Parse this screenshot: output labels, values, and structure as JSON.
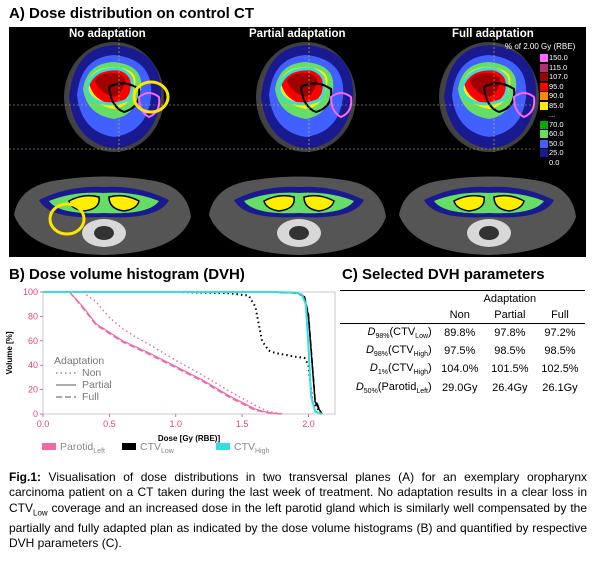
{
  "panel_a": {
    "title": "A) Dose distribution on control CT",
    "columns": [
      "No adaptation",
      "Partial adaptation",
      "Full adaptation"
    ],
    "scale_title": "% of 2.00 Gy (RBE)",
    "scale": [
      {
        "label": "150.0",
        "color": "#ff66ff"
      },
      {
        "label": "115.0",
        "color": "#b03070"
      },
      {
        "label": "107.0",
        "color": "#a00000"
      },
      {
        "label": "95.0",
        "color": "#ff0000"
      },
      {
        "label": "90.0",
        "color": "#ff8800"
      },
      {
        "label": "85.0",
        "color": "#ffee00"
      },
      {
        "label": "...",
        "color": "#000000"
      },
      {
        "label": "70.0",
        "color": "#00aa00"
      },
      {
        "label": "60.0",
        "color": "#66dd66"
      },
      {
        "label": "50.0",
        "color": "#4060ff"
      },
      {
        "label": "25.0",
        "color": "#1a1a90"
      },
      {
        "label": "0.0",
        "color": "#000000"
      }
    ]
  },
  "panel_b": {
    "title": "B) Dose volume histogram (DVH)",
    "legend_title": "Adaptation",
    "legend_items": [
      "Non",
      "Partial",
      "Full"
    ],
    "struct_legend": [
      {
        "base": "Parotid",
        "sub": "Left",
        "color": "#f06aa8"
      },
      {
        "base": "CTV",
        "sub": "Low",
        "color": "#000000"
      },
      {
        "base": "CTV",
        "sub": "High",
        "color": "#33dde0"
      }
    ]
  },
  "chart_data": {
    "type": "line",
    "xlabel": "Dose [Gy (RBE)]",
    "ylabel": "Volume [%]",
    "xlim": [
      0,
      2.2
    ],
    "ylim": [
      0,
      100
    ],
    "x_ticks": [
      "0.0",
      "0.5",
      "1.0",
      "1.5",
      "2.0"
    ],
    "y_ticks": [
      "0",
      "20",
      "40",
      "60",
      "80",
      "100"
    ],
    "grid": false,
    "series": [
      {
        "name": "Parotid (Non)",
        "color": "#f06aa8",
        "dash": "1.5,3",
        "width": 1.5,
        "x": [
          0.3,
          0.4,
          0.5,
          0.6,
          0.7,
          0.8,
          1.0,
          1.2,
          1.4,
          1.6,
          1.7,
          1.8
        ],
        "y": [
          100,
          92,
          79,
          70,
          63,
          57,
          44,
          32,
          19,
          7,
          2,
          0
        ]
      },
      {
        "name": "Parotid (Partial)",
        "color": "#f06aa8",
        "dash": "",
        "width": 1.2,
        "x": [
          0.2,
          0.3,
          0.4,
          0.5,
          0.6,
          0.8,
          1.0,
          1.2,
          1.4,
          1.6,
          1.7,
          1.8
        ],
        "y": [
          100,
          88,
          74,
          67,
          60,
          50,
          39,
          28,
          15,
          4,
          1,
          0
        ]
      },
      {
        "name": "Parotid (Full)",
        "color": "#f06aa8",
        "dash": "6,3",
        "width": 1.5,
        "x": [
          0.2,
          0.3,
          0.4,
          0.5,
          0.6,
          0.8,
          1.0,
          1.2,
          1.4,
          1.6,
          1.7,
          1.8
        ],
        "y": [
          100,
          87,
          73,
          66,
          59,
          49,
          38,
          27,
          14,
          3,
          1,
          0
        ]
      },
      {
        "name": "CTV Low (Non)",
        "color": "#000000",
        "dash": "1.5,3",
        "width": 2,
        "x": [
          0,
          1.0,
          1.4,
          1.55,
          1.6,
          1.65,
          1.7,
          1.75,
          1.9,
          1.97,
          2.0,
          2.03,
          2.1
        ],
        "y": [
          100,
          100,
          99,
          97,
          88,
          60,
          52,
          50,
          47,
          46,
          40,
          10,
          0
        ]
      },
      {
        "name": "CTV Low (Partial)",
        "color": "#000000",
        "dash": "",
        "width": 1.5,
        "x": [
          0,
          1.7,
          1.85,
          1.92,
          1.97,
          2.0,
          2.05,
          2.1
        ],
        "y": [
          100,
          100,
          99.5,
          99,
          96,
          80,
          10,
          0
        ]
      },
      {
        "name": "CTV Low (Full)",
        "color": "#000000",
        "dash": "6,3",
        "width": 1.5,
        "x": [
          0,
          1.7,
          1.85,
          1.92,
          1.97,
          2.0,
          2.05,
          2.1
        ],
        "y": [
          100,
          100,
          99.5,
          99,
          96,
          82,
          12,
          0
        ]
      },
      {
        "name": "CTV High",
        "color": "#33dde0",
        "dash": "",
        "width": 2,
        "x": [
          0,
          1.75,
          1.9,
          1.95,
          1.98,
          2.0,
          2.02,
          2.05,
          2.1
        ],
        "y": [
          100,
          100,
          99.5,
          98,
          90,
          55,
          15,
          2,
          0
        ]
      }
    ]
  },
  "panel_c": {
    "title": "C) Selected DVH parameters",
    "group_header": "Adaptation",
    "col_headers": [
      "Non",
      "Partial",
      "Full"
    ],
    "rows": [
      {
        "param": "D",
        "psub": "98%",
        "struct": "CTV",
        "ssub": "Low",
        "values": [
          "89.8%",
          "97.8%",
          "97.2%"
        ]
      },
      {
        "param": "D",
        "psub": "98%",
        "struct": "CTV",
        "ssub": "High",
        "values": [
          "97.5%",
          "98.5%",
          "98.5%"
        ]
      },
      {
        "param": "D",
        "psub": "1%",
        "struct": "CTV",
        "ssub": "High",
        "values": [
          "104.0%",
          "101.5%",
          "102.5%"
        ]
      },
      {
        "param": "D",
        "psub": "50%",
        "struct": "Parotid",
        "ssub": "Left",
        "values": [
          "29.0Gy",
          "26.4Gy",
          "26.1Gy"
        ]
      }
    ]
  },
  "caption": {
    "label": "Fig.1:",
    "p1": " Visualisation of dose distributions in two transversal planes (A) for an exemplary oropharynx carcinoma patient on a CT taken during the last week of treatment. No adaptation results in a clear loss in CTV",
    "sub1": "Low",
    "p2": " coverage and an increased dose in the left parotid gland which is similarly well compensated by the partially and fully adapted plan as indicated by the dose volume histograms (B) and quantified by respective DVH parameters (C)."
  }
}
